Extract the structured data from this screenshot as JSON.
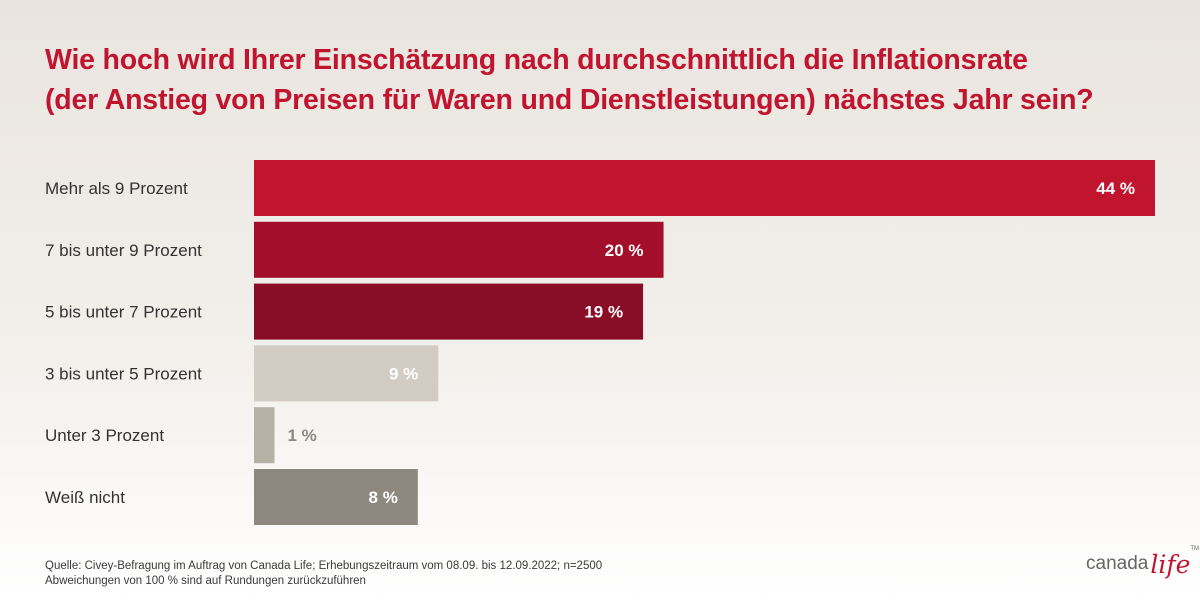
{
  "title": {
    "line1": "Wie hoch wird Ihrer Einschätzung nach durchschnittlich die Inflationsrate",
    "line2": "(der Anstieg von Preisen für Waren und Dienstleistungen) nächstes Jahr sein?"
  },
  "chart_data": {
    "type": "bar",
    "orientation": "horizontal",
    "categories": [
      "Mehr als 9 Prozent",
      "7 bis unter 9 Prozent",
      "5 bis unter 7 Prozent",
      "3 bis unter 5 Prozent",
      "Unter 3 Prozent",
      "Weiß nicht"
    ],
    "values": [
      44,
      20,
      19,
      9,
      1,
      8
    ],
    "value_labels": [
      "44 %",
      "20 %",
      "19 %",
      "9 %",
      "1 %",
      "8 %"
    ],
    "bar_colors": [
      "#c0142f",
      "#a30e2a",
      "#880d26",
      "#d2ccc4",
      "#b7b0a5",
      "#8e8980"
    ],
    "label_colors": [
      "#ffffff",
      "#ffffff",
      "#ffffff",
      "#ffffff",
      "#8e8980",
      "#ffffff"
    ],
    "xlim": [
      0,
      44
    ],
    "grid": false,
    "legend": "none"
  },
  "source": {
    "line1": "Quelle: Civey-Befragung im Auftrag von Canada Life; Erhebungszeitraum vom 08.09. bis 12.09.2022; n=2500",
    "line2": "Abweichungen von 100 % sind auf Rundungen zurückzuführen"
  },
  "logo": {
    "word1": "canada",
    "word2": "life",
    "tm": "TM"
  }
}
